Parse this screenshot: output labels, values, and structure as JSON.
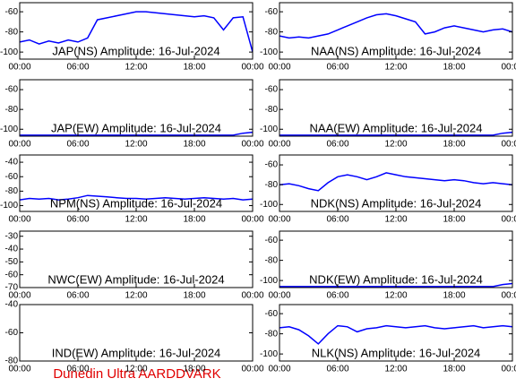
{
  "chart_data": [
    {
      "type": "line",
      "title": "JAP(NS) Amplitude: 16-Jul-2024",
      "color": "#0000ff",
      "x": [
        0,
        1,
        2,
        3,
        4,
        5,
        6,
        7,
        8,
        9,
        10,
        11,
        12,
        13,
        14,
        15,
        16,
        17,
        18,
        19,
        20,
        21,
        22,
        23,
        24
      ],
      "values": [
        -90,
        -88,
        -92,
        -89,
        -91,
        -88,
        -90,
        -86,
        -68,
        -66,
        -64,
        -62,
        -60,
        -60,
        -61,
        -62,
        -63,
        -64,
        -65,
        -64,
        -66,
        -78,
        -66,
        -65,
        -100
      ],
      "xlim": [
        0,
        24
      ],
      "xticks": [
        {
          "value": 0,
          "label": "00:00"
        },
        {
          "value": 6,
          "label": "06:00"
        },
        {
          "value": 12,
          "label": "12:00"
        },
        {
          "value": 18,
          "label": "18:00"
        },
        {
          "value": 24,
          "label": "00:00"
        }
      ],
      "ylim": [
        -107,
        -51
      ],
      "yticks": [
        -100,
        -80,
        -60
      ]
    },
    {
      "type": "line",
      "title": "NAA(NS) Amplitude: 16-Jul-2024",
      "color": "#0000ff",
      "x": [
        0,
        1,
        2,
        3,
        4,
        5,
        6,
        7,
        8,
        9,
        10,
        11,
        12,
        13,
        14,
        15,
        16,
        17,
        18,
        19,
        20,
        21,
        22,
        23,
        24
      ],
      "values": [
        -84,
        -86,
        -85,
        -86,
        -84,
        -82,
        -78,
        -74,
        -70,
        -66,
        -63,
        -62,
        -64,
        -67,
        -70,
        -82,
        -80,
        -76,
        -74,
        -76,
        -78,
        -80,
        -78,
        -77,
        -80
      ],
      "xlim": [
        0,
        24
      ],
      "xticks": [
        {
          "value": 0,
          "label": "00:00"
        },
        {
          "value": 6,
          "label": "06:00"
        },
        {
          "value": 12,
          "label": "12:00"
        },
        {
          "value": 18,
          "label": "18:00"
        },
        {
          "value": 24,
          "label": "00:00"
        }
      ],
      "ylim": [
        -107,
        -51
      ],
      "yticks": [
        -100,
        -80,
        -60
      ]
    },
    {
      "type": "line",
      "title": "JAP(EW) Amplitude: 16-Jul-2024",
      "color": "#0000ff",
      "x": [
        0,
        1,
        2,
        3,
        4,
        5,
        6,
        7,
        8,
        9,
        10,
        11,
        12,
        13,
        14,
        15,
        16,
        17,
        18,
        19,
        20,
        21,
        22,
        23,
        24
      ],
      "values": [
        -106,
        -106,
        -106,
        -106,
        -106,
        -106,
        -106,
        -106,
        -106,
        -106,
        -106,
        -106,
        -106,
        -106,
        -106,
        -106,
        -106,
        -106,
        -106,
        -106,
        -106,
        -106,
        -106,
        -104,
        -103
      ],
      "xlim": [
        0,
        24
      ],
      "xticks": [
        {
          "value": 0,
          "label": "00:00"
        },
        {
          "value": 6,
          "label": "06:00"
        },
        {
          "value": 12,
          "label": "12:00"
        },
        {
          "value": 18,
          "label": "18:00"
        },
        {
          "value": 24,
          "label": "00:00"
        }
      ],
      "ylim": [
        -107,
        -50
      ],
      "yticks": [
        -100,
        -80,
        -60
      ]
    },
    {
      "type": "line",
      "title": "NAA(EW) Amplitude: 16-Jul-2024",
      "color": "#0000ff",
      "x": [
        0,
        1,
        2,
        3,
        4,
        5,
        6,
        7,
        8,
        9,
        10,
        11,
        12,
        13,
        14,
        15,
        16,
        17,
        18,
        19,
        20,
        21,
        22,
        23,
        24
      ],
      "values": [
        -106,
        -106,
        -106,
        -106,
        -106,
        -106,
        -106,
        -106,
        -106,
        -106,
        -106,
        -106,
        -106,
        -106,
        -106,
        -106,
        -106,
        -106,
        -106,
        -106,
        -106,
        -106,
        -106,
        -104,
        -103
      ],
      "xlim": [
        0,
        24
      ],
      "xticks": [
        {
          "value": 0,
          "label": "00:00"
        },
        {
          "value": 6,
          "label": "06:00"
        },
        {
          "value": 12,
          "label": "12:00"
        },
        {
          "value": 18,
          "label": "18:00"
        },
        {
          "value": 24,
          "label": "00:00"
        }
      ],
      "ylim": [
        -107,
        -50
      ],
      "yticks": [
        -100,
        -80,
        -60
      ]
    },
    {
      "type": "line",
      "title": "NPM(NS) Amplitude: 16-Jul-2024",
      "color": "#0000ff",
      "x": [
        0,
        1,
        2,
        3,
        4,
        5,
        6,
        7,
        8,
        9,
        10,
        11,
        12,
        13,
        14,
        15,
        16,
        17,
        18,
        19,
        20,
        21,
        22,
        23,
        24
      ],
      "values": [
        -92,
        -90,
        -91,
        -90,
        -92,
        -91,
        -89,
        -86,
        -87,
        -88,
        -89,
        -90,
        -90,
        -91,
        -90,
        -89,
        -90,
        -91,
        -90,
        -89,
        -90,
        -91,
        -90,
        -92,
        -91
      ],
      "xlim": [
        0,
        24
      ],
      "xticks": [
        {
          "value": 0,
          "label": "00:00"
        },
        {
          "value": 6,
          "label": "06:00"
        },
        {
          "value": 12,
          "label": "12:00"
        },
        {
          "value": 18,
          "label": "18:00"
        },
        {
          "value": 24,
          "label": "00:00"
        }
      ],
      "ylim": [
        -108,
        -30
      ],
      "yticks": [
        -100,
        -80,
        -60,
        -40
      ]
    },
    {
      "type": "line",
      "title": "NDK(NS) Amplitude: 16-Jul-2024",
      "color": "#0000ff",
      "x": [
        0,
        1,
        2,
        3,
        4,
        5,
        6,
        7,
        8,
        9,
        10,
        11,
        12,
        13,
        14,
        15,
        16,
        17,
        18,
        19,
        20,
        21,
        22,
        23,
        24
      ],
      "values": [
        -80,
        -79,
        -81,
        -84,
        -86,
        -78,
        -72,
        -70,
        -72,
        -75,
        -72,
        -68,
        -70,
        -72,
        -73,
        -74,
        -75,
        -76,
        -75,
        -76,
        -78,
        -79,
        -78,
        -79,
        -80
      ],
      "xlim": [
        0,
        24
      ],
      "xticks": [
        {
          "value": 0,
          "label": "00:00"
        },
        {
          "value": 6,
          "label": "06:00"
        },
        {
          "value": 12,
          "label": "12:00"
        },
        {
          "value": 18,
          "label": "18:00"
        },
        {
          "value": 24,
          "label": "00:00"
        }
      ],
      "ylim": [
        -107,
        -50
      ],
      "yticks": [
        -100,
        -80,
        -60
      ]
    },
    {
      "type": "line",
      "title": "NWC(EW) Amplitude: 16-Jul-2024",
      "color": "#0000ff",
      "x": [
        0,
        1,
        2,
        3,
        4,
        5,
        6,
        7,
        8,
        9,
        10,
        11,
        12,
        13,
        14,
        15,
        16,
        17,
        18,
        19,
        20,
        21,
        22,
        23,
        24
      ],
      "values": [
        null,
        null,
        null,
        null,
        null,
        null,
        null,
        null,
        null,
        null,
        null,
        null,
        null,
        null,
        null,
        null,
        null,
        null,
        null,
        null,
        null,
        null,
        null,
        null,
        null
      ],
      "xlim": [
        0,
        24
      ],
      "xticks": [
        {
          "value": 0,
          "label": "00:00"
        },
        {
          "value": 6,
          "label": "06:00"
        },
        {
          "value": 12,
          "label": "12:00"
        },
        {
          "value": 18,
          "label": "18:00"
        },
        {
          "value": 24,
          "label": "00:00"
        }
      ],
      "ylim": [
        -70,
        -26
      ],
      "yticks": [
        -70,
        -60,
        -50,
        -40,
        -30
      ]
    },
    {
      "type": "line",
      "title": "NDK(EW) Amplitude: 16-Jul-2024",
      "color": "#0000ff",
      "x": [
        0,
        1,
        2,
        3,
        4,
        5,
        6,
        7,
        8,
        9,
        10,
        11,
        12,
        13,
        14,
        15,
        16,
        17,
        18,
        19,
        20,
        21,
        22,
        23,
        24
      ],
      "values": [
        -106,
        -106,
        -106,
        -106,
        -106,
        -106,
        -106,
        -106,
        -106,
        -106,
        -106,
        -106,
        -106,
        -106,
        -106,
        -106,
        -106,
        -106,
        -106,
        -106,
        -106,
        -106,
        -106,
        -104,
        -103
      ],
      "xlim": [
        0,
        24
      ],
      "xticks": [
        {
          "value": 0,
          "label": "00:00"
        },
        {
          "value": 6,
          "label": "06:00"
        },
        {
          "value": 12,
          "label": "12:00"
        },
        {
          "value": 18,
          "label": "18:00"
        },
        {
          "value": 24,
          "label": "00:00"
        }
      ],
      "ylim": [
        -107,
        -51
      ],
      "yticks": [
        -100,
        -80,
        -60
      ]
    },
    {
      "type": "line",
      "title": "IND(EW) Amplitude: 16-Jul-2024",
      "color": "#0000ff",
      "x": [
        0,
        1,
        2,
        3,
        4,
        5,
        6,
        7,
        8,
        9,
        10,
        11,
        12,
        13,
        14,
        15,
        16,
        17,
        18,
        19,
        20,
        21,
        22,
        23,
        24
      ],
      "values": [
        null,
        null,
        null,
        null,
        null,
        null,
        null,
        null,
        null,
        null,
        null,
        null,
        null,
        null,
        null,
        null,
        null,
        null,
        null,
        null,
        null,
        null,
        null,
        null,
        null
      ],
      "xlim": [
        0,
        24
      ],
      "xticks": [
        {
          "value": 0,
          "label": "00:00"
        },
        {
          "value": 6,
          "label": "06:00"
        },
        {
          "value": 12,
          "label": "12:00"
        },
        {
          "value": 18,
          "label": "18:00"
        },
        {
          "value": 24,
          "label": "00:00"
        }
      ],
      "ylim": [
        -80,
        -40
      ],
      "yticks": [
        -80,
        -60,
        -40
      ]
    },
    {
      "type": "line",
      "title": "NLK(NS) Amplitude: 16-Jul-2024",
      "color": "#0000ff",
      "x": [
        0,
        1,
        2,
        3,
        4,
        5,
        6,
        7,
        8,
        9,
        10,
        11,
        12,
        13,
        14,
        15,
        16,
        17,
        18,
        19,
        20,
        21,
        22,
        23,
        24
      ],
      "values": [
        -74,
        -73,
        -76,
        -82,
        -90,
        -80,
        -72,
        -73,
        -78,
        -75,
        -74,
        -72,
        -73,
        -74,
        -73,
        -72,
        -74,
        -75,
        -74,
        -73,
        -72,
        -74,
        -73,
        -72,
        -73
      ],
      "xlim": [
        0,
        24
      ],
      "xticks": [
        {
          "value": 0,
          "label": "00:00"
        },
        {
          "value": 6,
          "label": "06:00"
        },
        {
          "value": 12,
          "label": "12:00"
        },
        {
          "value": 18,
          "label": "18:00"
        },
        {
          "value": 24,
          "label": "00:00"
        }
      ],
      "ylim": [
        -107,
        -51
      ],
      "yticks": [
        -100,
        -80,
        -60
      ]
    }
  ],
  "footer": "Dunedin Ultra AARDDVARK"
}
